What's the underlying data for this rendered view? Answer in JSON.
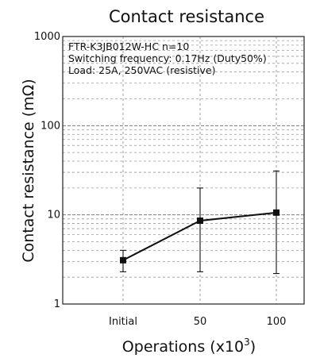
{
  "chart_data": {
    "type": "line",
    "title": "Contact resistance",
    "xlabel": "Operations (x10",
    "xlabel_sup": "3",
    "xlabel_close": ")",
    "ylabel": "Contact resistance (mΩ)",
    "y_scale": "log",
    "ylim": [
      1,
      1000
    ],
    "grid": true,
    "categories": [
      "Initial",
      "50",
      "100"
    ],
    "y_ticks": [
      "1",
      "10",
      "100",
      "1000"
    ],
    "series": [
      {
        "values": [
          3.1,
          8.6,
          10.6
        ],
        "min": [
          2.3,
          2.3,
          2.2
        ],
        "max": [
          4.0,
          20.0,
          31.0
        ]
      }
    ],
    "annotations": [
      "FTR-K3JB012W-HC       n=10",
      "Switching frequency: 0.17Hz (Duty50%)",
      "Load: 25A, 250VAC  (resistive)"
    ]
  }
}
